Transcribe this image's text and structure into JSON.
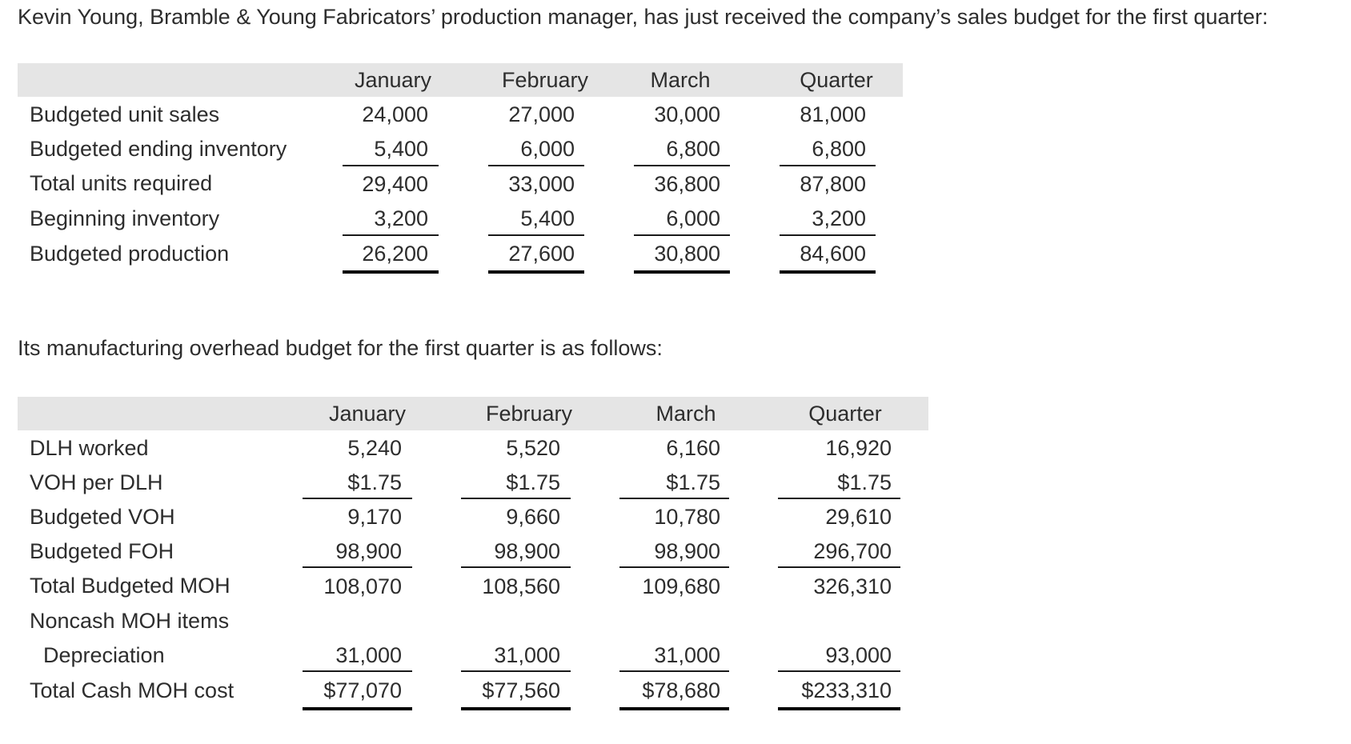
{
  "intro_text": "Kevin Young, Bramble & Young Fabricators’ production manager, has just received the company’s sales budget for the first quarter:",
  "production_budget": {
    "columns": [
      "January",
      "February",
      "March",
      "Quarter"
    ],
    "rows": [
      {
        "label": "Budgeted unit sales",
        "values": [
          "24,000",
          "27,000",
          "30,000",
          "81,000"
        ]
      },
      {
        "label": "Budgeted ending inventory",
        "values": [
          "5,400",
          "6,000",
          "6,800",
          "6,800"
        ]
      },
      {
        "label": "Total units required",
        "values": [
          "29,400",
          "33,000",
          "36,800",
          "87,800"
        ]
      },
      {
        "label": "Beginning inventory",
        "values": [
          "3,200",
          "5,400",
          "6,000",
          "3,200"
        ]
      },
      {
        "label": "Budgeted production",
        "values": [
          "26,200",
          "27,600",
          "30,800",
          "84,600"
        ]
      }
    ]
  },
  "moh_intro_text": "Its manufacturing overhead budget for the first quarter is as follows:",
  "moh_budget": {
    "columns": [
      "January",
      "February",
      "March",
      "Quarter"
    ],
    "rows": [
      {
        "label": "DLH worked",
        "values": [
          "5,240",
          "5,520",
          "6,160",
          "16,920"
        ]
      },
      {
        "label": "VOH per DLH",
        "values": [
          "$1.75",
          "$1.75",
          "$1.75",
          "$1.75"
        ]
      },
      {
        "label": "Budgeted VOH",
        "values": [
          "9,170",
          "9,660",
          "10,780",
          "29,610"
        ]
      },
      {
        "label": "Budgeted FOH",
        "values": [
          "98,900",
          "98,900",
          "98,900",
          "296,700"
        ]
      },
      {
        "label": "Total Budgeted MOH",
        "values": [
          "108,070",
          "108,560",
          "109,680",
          "326,310"
        ]
      },
      {
        "label": "Noncash MOH items",
        "values": [
          "",
          "",
          "",
          ""
        ]
      },
      {
        "label": "Depreciation",
        "values": [
          "31,000",
          "31,000",
          "31,000",
          "93,000"
        ]
      },
      {
        "label": "Total Cash MOH cost",
        "values": [
          "$77,070",
          "$77,560",
          "$78,680",
          "$233,310"
        ]
      }
    ]
  }
}
